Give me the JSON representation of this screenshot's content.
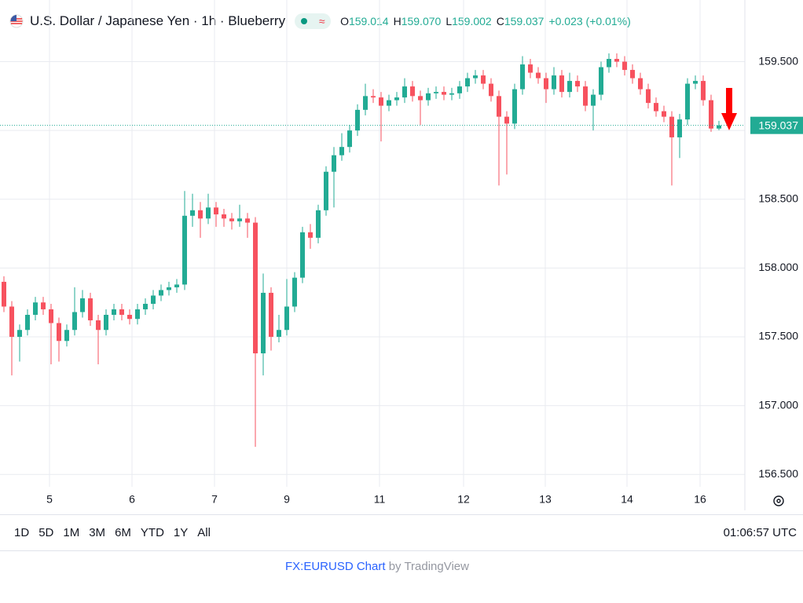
{
  "header": {
    "title": "U.S. Dollar / Japanese Yen · 1h · Blueberry",
    "ohlc": [
      {
        "key": "O",
        "value": "159.014"
      },
      {
        "key": "H",
        "value": "159.070"
      },
      {
        "key": "L",
        "value": "159.002"
      },
      {
        "key": "C",
        "value": "159.037"
      }
    ],
    "change": "+0.023 (+0.01%)"
  },
  "chart_data": {
    "type": "candlestick",
    "up_color": "#22ab94",
    "down_color": "#f7525f",
    "grid": true,
    "open": [
      157.9,
      157.72,
      157.5,
      157.55,
      157.66,
      157.75,
      157.7,
      157.6,
      157.47,
      157.55,
      157.68,
      157.78,
      157.62,
      157.55,
      157.66,
      157.7,
      157.66,
      157.63,
      157.7,
      157.74,
      157.8,
      157.84,
      157.86,
      157.88,
      158.38,
      158.42,
      158.36,
      158.44,
      158.39,
      158.36,
      158.34,
      158.36,
      158.33,
      157.38,
      157.82,
      157.5,
      157.55,
      157.72,
      157.93,
      158.26,
      158.22,
      158.42,
      158.7,
      158.82,
      158.88,
      159.0,
      159.15,
      159.25,
      159.24,
      159.18,
      159.22,
      159.24,
      159.32,
      159.25,
      159.22,
      159.27,
      159.28,
      159.26,
      159.27,
      159.32,
      159.38,
      159.4,
      159.34,
      159.25,
      159.1,
      159.05,
      159.3,
      159.48,
      159.42,
      159.38,
      159.3,
      159.4,
      159.28,
      159.36,
      159.32,
      159.18,
      159.26,
      159.46,
      159.52,
      159.5,
      159.44,
      159.38,
      159.3,
      159.2,
      159.14,
      159.1,
      158.95,
      159.08,
      159.34,
      159.36,
      159.22,
      159.014
    ],
    "high": [
      157.94,
      157.76,
      157.59,
      157.7,
      157.79,
      157.79,
      157.74,
      157.64,
      157.59,
      157.86,
      157.84,
      157.82,
      157.66,
      157.7,
      157.74,
      157.74,
      157.7,
      157.74,
      157.78,
      157.84,
      157.88,
      157.9,
      157.92,
      158.56,
      158.54,
      158.48,
      158.54,
      158.48,
      158.43,
      158.4,
      158.46,
      158.4,
      158.37,
      157.96,
      157.86,
      157.66,
      157.92,
      157.97,
      158.3,
      158.32,
      158.46,
      158.74,
      158.88,
      158.98,
      159.04,
      159.19,
      159.34,
      159.3,
      159.28,
      159.26,
      159.28,
      159.38,
      159.36,
      159.29,
      159.31,
      159.32,
      159.32,
      159.31,
      159.36,
      159.42,
      159.44,
      159.44,
      159.38,
      159.29,
      159.14,
      159.34,
      159.54,
      159.52,
      159.46,
      159.42,
      159.46,
      159.44,
      159.42,
      159.4,
      159.36,
      159.3,
      159.5,
      159.56,
      159.56,
      159.54,
      159.48,
      159.42,
      159.34,
      159.24,
      159.18,
      159.14,
      159.12,
      159.38,
      159.4,
      159.4,
      159.26,
      159.07
    ],
    "low": [
      157.68,
      157.22,
      157.32,
      157.51,
      157.62,
      157.66,
      157.3,
      157.32,
      157.43,
      157.51,
      157.64,
      157.58,
      157.3,
      157.51,
      157.62,
      157.62,
      157.59,
      157.59,
      157.66,
      157.7,
      157.76,
      157.8,
      157.82,
      157.84,
      158.3,
      158.22,
      158.32,
      158.3,
      158.3,
      158.28,
      158.3,
      158.22,
      156.7,
      157.22,
      157.4,
      157.46,
      157.51,
      157.68,
      157.89,
      158.14,
      158.18,
      158.38,
      158.44,
      158.78,
      158.84,
      158.96,
      159.11,
      159.2,
      158.92,
      159.14,
      159.18,
      159.2,
      159.21,
      159.04,
      159.18,
      159.23,
      159.22,
      159.22,
      159.23,
      159.28,
      159.34,
      159.3,
      159.21,
      158.6,
      158.68,
      159.01,
      159.26,
      159.38,
      159.34,
      159.2,
      159.26,
      159.24,
      159.24,
      159.28,
      159.14,
      159.0,
      159.22,
      159.42,
      159.46,
      159.4,
      159.34,
      159.26,
      159.16,
      159.1,
      159.06,
      158.6,
      158.8,
      159.04,
      159.3,
      159.18,
      158.99,
      159.002
    ],
    "close": [
      157.72,
      157.5,
      157.55,
      157.66,
      157.75,
      157.7,
      157.6,
      157.47,
      157.55,
      157.68,
      157.78,
      157.62,
      157.55,
      157.66,
      157.7,
      157.66,
      157.63,
      157.7,
      157.74,
      157.8,
      157.84,
      157.86,
      157.88,
      158.38,
      158.42,
      158.36,
      158.44,
      158.39,
      158.36,
      158.34,
      158.36,
      158.33,
      157.38,
      157.82,
      157.5,
      157.55,
      157.72,
      157.93,
      158.26,
      158.22,
      158.42,
      158.7,
      158.82,
      158.88,
      159.0,
      159.15,
      159.25,
      159.24,
      159.18,
      159.22,
      159.24,
      159.32,
      159.25,
      159.22,
      159.27,
      159.28,
      159.26,
      159.27,
      159.32,
      159.38,
      159.4,
      159.34,
      159.25,
      159.1,
      159.05,
      159.3,
      159.48,
      159.42,
      159.38,
      159.3,
      159.4,
      159.28,
      159.36,
      159.32,
      159.18,
      159.26,
      159.46,
      159.52,
      159.5,
      159.44,
      159.38,
      159.3,
      159.2,
      159.14,
      159.1,
      158.95,
      159.08,
      159.34,
      159.36,
      159.22,
      159.014,
      159.037
    ],
    "last_price_label": "159.037",
    "ylim": [
      156.41,
      159.72
    ],
    "yticks": [
      {
        "value": 156.5,
        "label": "156.500"
      },
      {
        "value": 157,
        "label": "157.000"
      },
      {
        "value": 157.5,
        "label": "157.500"
      },
      {
        "value": 158,
        "label": "158.000"
      },
      {
        "value": 158.5,
        "label": "158.500"
      },
      {
        "value": 159,
        "label": "159.000"
      },
      {
        "value": 159.5,
        "label": "159.500"
      }
    ],
    "xlim": [
      -0.5,
      94.3
    ],
    "xticks": [
      {
        "value": 5.8,
        "label": "5"
      },
      {
        "value": 16.3,
        "label": "6"
      },
      {
        "value": 26.8,
        "label": "7"
      },
      {
        "value": 36,
        "label": "9"
      },
      {
        "value": 47.8,
        "label": "11"
      },
      {
        "value": 58.5,
        "label": "12"
      },
      {
        "value": 68.9,
        "label": "13"
      },
      {
        "value": 79.3,
        "label": "14"
      },
      {
        "value": 88.6,
        "label": "16"
      }
    ]
  },
  "ranges": [
    "1D",
    "5D",
    "1M",
    "3M",
    "6M",
    "YTD",
    "1Y",
    "All"
  ],
  "clock": "01:06:57 UTC",
  "footer": {
    "link": "FX:EURUSD Chart",
    "by": "by TradingView"
  }
}
